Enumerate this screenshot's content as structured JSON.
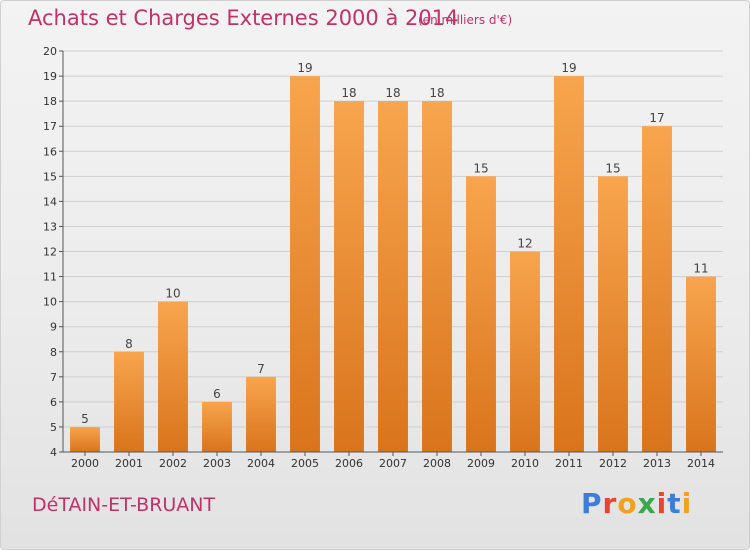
{
  "header": {
    "title": "Achats et Charges Externes 2000 à 2014",
    "subtitle": "(en milliers d'€)"
  },
  "footer": {
    "commune": "DéTAIN-ET-BRUANT",
    "logo_text": "Proxiti",
    "logo_colors": [
      "#3a7fd5",
      "#e8452b",
      "#f2a01e",
      "#39a84a",
      "#e8452b",
      "#3a7fd5",
      "#f2a01e"
    ]
  },
  "colors": {
    "bar_top": "#f7a54e",
    "bar_bottom": "#d9741c",
    "accent": "#c0326a",
    "grid": "#cfcfcf"
  },
  "chart_data": {
    "type": "bar",
    "title": "Achats et Charges Externes 2000 à 2014",
    "subtitle": "(en milliers d'€)",
    "categories": [
      "2000",
      "2001",
      "2002",
      "2003",
      "2004",
      "2005",
      "2006",
      "2007",
      "2008",
      "2009",
      "2010",
      "2011",
      "2012",
      "2013",
      "2014"
    ],
    "values": [
      5,
      8,
      10,
      6,
      7,
      19,
      18,
      18,
      18,
      15,
      12,
      19,
      15,
      17,
      11
    ],
    "ylim": [
      4,
      20
    ],
    "yticks": [
      4,
      5,
      6,
      7,
      8,
      9,
      10,
      11,
      12,
      13,
      14,
      15,
      16,
      17,
      18,
      19,
      20
    ],
    "grid": true,
    "xlabel": "",
    "ylabel": ""
  }
}
